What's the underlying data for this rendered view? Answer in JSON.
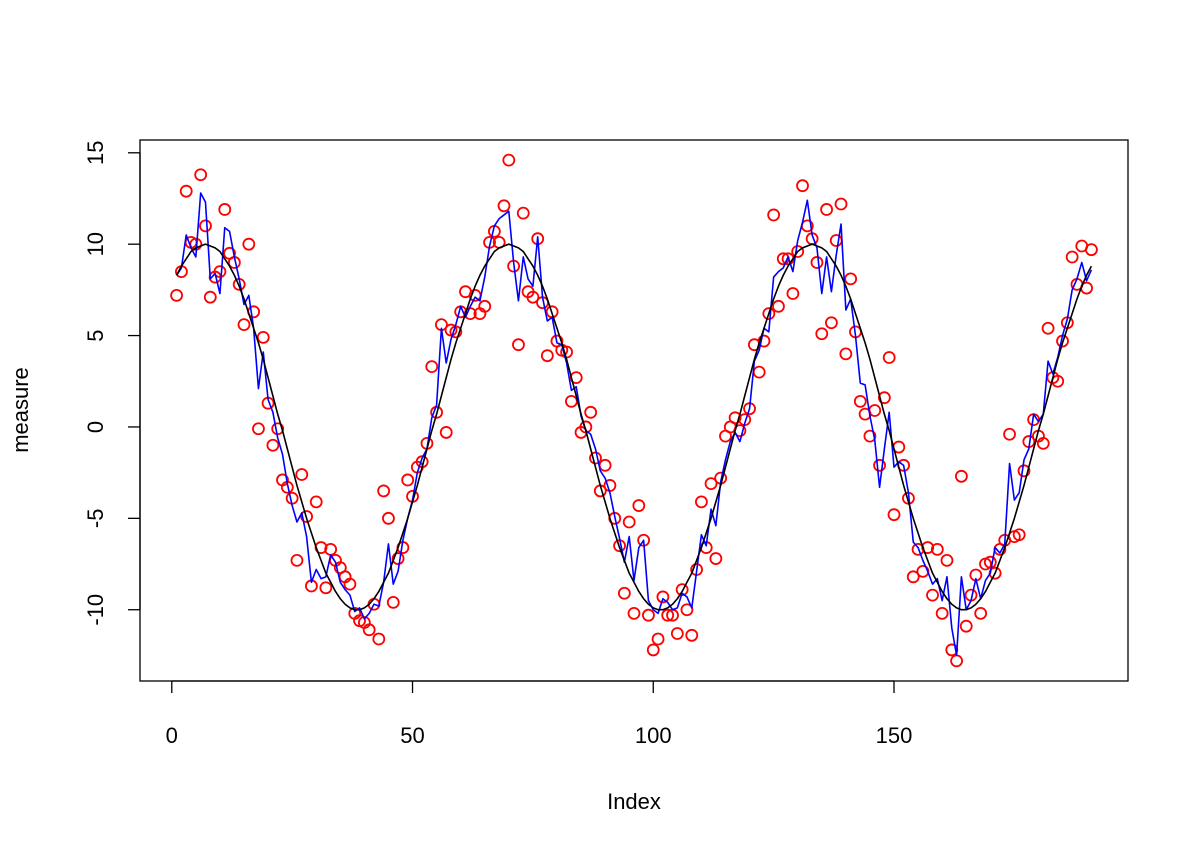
{
  "chart_data": {
    "type": "scatter",
    "xlabel": "Index",
    "ylabel": "measure",
    "xlim": [
      -6.6,
      198.6
    ],
    "ylim": [
      -13.9,
      15.7
    ],
    "xticks": [
      0,
      50,
      100,
      150
    ],
    "yticks": [
      -10,
      -5,
      0,
      5,
      10,
      15
    ],
    "x": [
      1,
      2,
      3,
      4,
      5,
      6,
      7,
      8,
      9,
      10,
      11,
      12,
      13,
      14,
      15,
      16,
      17,
      18,
      19,
      20,
      21,
      22,
      23,
      24,
      25,
      26,
      27,
      28,
      29,
      30,
      31,
      32,
      33,
      34,
      35,
      36,
      37,
      38,
      39,
      40,
      41,
      42,
      43,
      44,
      45,
      46,
      47,
      48,
      49,
      50,
      51,
      52,
      53,
      54,
      55,
      56,
      57,
      58,
      59,
      60,
      61,
      62,
      63,
      64,
      65,
      66,
      67,
      68,
      69,
      70,
      71,
      72,
      73,
      74,
      75,
      76,
      77,
      78,
      79,
      80,
      81,
      82,
      83,
      84,
      85,
      86,
      87,
      88,
      89,
      90,
      91,
      92,
      93,
      94,
      95,
      96,
      97,
      98,
      99,
      100,
      101,
      102,
      103,
      104,
      105,
      106,
      107,
      108,
      109,
      110,
      111,
      112,
      113,
      114,
      115,
      116,
      117,
      118,
      119,
      120,
      121,
      122,
      123,
      124,
      125,
      126,
      127,
      128,
      129,
      130,
      131,
      132,
      133,
      134,
      135,
      136,
      137,
      138,
      139,
      140,
      141,
      142,
      143,
      144,
      145,
      146,
      147,
      148,
      149,
      150,
      151,
      152,
      153,
      154,
      155,
      156,
      157,
      158,
      159,
      160,
      161,
      162,
      163,
      164,
      165,
      166,
      167,
      168,
      169,
      170,
      171,
      172,
      173,
      174,
      175,
      176,
      177,
      178,
      179,
      180,
      181,
      182,
      183,
      184,
      185,
      186,
      187,
      188,
      189,
      190,
      191
    ],
    "series": [
      {
        "type": "points",
        "color": "#ff0000",
        "values": [
          7.2,
          8.5,
          12.9,
          10.1,
          10.0,
          13.8,
          11.0,
          7.1,
          8.2,
          8.5,
          11.9,
          9.5,
          9.0,
          7.8,
          5.6,
          10.0,
          6.3,
          -0.1,
          4.9,
          1.3,
          -1.0,
          -0.1,
          -2.9,
          -3.3,
          -3.9,
          -7.3,
          -2.6,
          -4.9,
          -8.7,
          -4.1,
          -6.6,
          -8.8,
          -6.7,
          -7.3,
          -7.7,
          -8.2,
          -8.6,
          -10.2,
          -10.6,
          -10.7,
          -11.1,
          -9.7,
          -11.6,
          -3.5,
          -5.0,
          -9.6,
          -7.2,
          -6.6,
          -2.9,
          -3.8,
          -2.2,
          -1.9,
          -0.9,
          3.3,
          0.8,
          5.6,
          -0.3,
          5.3,
          5.2,
          6.3,
          7.4,
          6.2,
          7.2,
          6.2,
          6.6,
          10.1,
          10.7,
          10.1,
          12.1,
          14.6,
          8.8,
          4.5,
          11.7,
          7.4,
          7.1,
          10.3,
          6.8,
          3.9,
          6.3,
          4.7,
          4.2,
          4.1,
          1.4,
          2.7,
          -0.3,
          0.0,
          0.8,
          -1.7,
          -3.5,
          -2.1,
          -3.2,
          -5.0,
          -6.5,
          -9.1,
          -5.2,
          -10.2,
          -4.3,
          -6.2,
          -10.3,
          -12.2,
          -11.6,
          -9.3,
          -10.3,
          -10.3,
          -11.3,
          -8.9,
          -10.0,
          -11.4,
          -7.8,
          -4.1,
          -6.6,
          -3.1,
          -7.2,
          -2.8,
          -0.5,
          0.0,
          0.5,
          -0.2,
          0.4,
          1.0,
          4.5,
          3.0,
          4.7,
          6.2,
          11.6,
          6.6,
          9.2,
          9.2,
          7.3,
          9.6,
          13.2,
          11.0,
          10.3,
          9.0,
          5.1,
          11.9,
          5.7,
          10.2,
          12.2,
          4.0,
          8.1,
          5.2,
          1.4,
          0.7,
          -0.5,
          0.9,
          -2.1,
          1.6,
          3.8,
          -4.8,
          -1.1,
          -2.1,
          -3.9,
          -8.2,
          -6.7,
          -7.9,
          -6.6,
          -9.2,
          -6.7,
          -10.2,
          -7.3,
          -12.2,
          -12.8,
          -2.7,
          -10.9,
          -9.2,
          -8.1,
          -10.2,
          -7.5,
          -7.4,
          -8.0,
          -6.7,
          -6.2,
          -0.4,
          -6.0,
          -5.9,
          -2.4,
          -0.8,
          0.4,
          -0.5,
          -0.9,
          5.4,
          2.7,
          2.5,
          4.7,
          5.7,
          9.3,
          7.8,
          9.9,
          7.6,
          9.7
        ]
      },
      {
        "type": "line",
        "color": "#0000ff",
        "values": [
          8.3,
          8.7,
          10.5,
          9.8,
          9.3,
          12.8,
          12.3,
          8.1,
          8.4,
          7.3,
          10.9,
          10.7,
          9.3,
          8.1,
          6.7,
          7.2,
          5.4,
          2.1,
          4.1,
          1.5,
          0.8,
          -0.6,
          -1.5,
          -3.1,
          -4.3,
          -5.2,
          -4.7,
          -6.0,
          -8.5,
          -7.8,
          -8.3,
          -8.2,
          -7.0,
          -7.4,
          -8.5,
          -8.9,
          -9.2,
          -10.1,
          -9.9,
          -10.5,
          -10.2,
          -9.7,
          -9.8,
          -8.5,
          -6.4,
          -8.6,
          -7.9,
          -6.2,
          -5.0,
          -4.0,
          -2.5,
          -1.7,
          -1.2,
          0.5,
          1.2,
          5.4,
          3.5,
          4.8,
          5.6,
          6.6,
          6.0,
          6.6,
          7.1,
          6.9,
          8.2,
          9.9,
          11.0,
          11.4,
          11.6,
          11.8,
          9.0,
          6.9,
          9.3,
          8.1,
          7.7,
          10.4,
          7.1,
          5.8,
          6.0,
          4.6,
          4.5,
          3.5,
          2.0,
          2.2,
          0.6,
          -0.2,
          -0.4,
          -1.2,
          -2.4,
          -2.8,
          -3.6,
          -4.9,
          -6.1,
          -7.4,
          -6.0,
          -8.4,
          -6.6,
          -6.2,
          -9.5,
          -10.0,
          -10.2,
          -9.4,
          -9.6,
          -10.0,
          -9.9,
          -9.1,
          -9.3,
          -9.9,
          -7.9,
          -5.9,
          -6.5,
          -4.5,
          -5.4,
          -3.0,
          -1.8,
          -0.8,
          -0.3,
          -0.8,
          0.2,
          1.0,
          3.6,
          4.2,
          5.4,
          5.2,
          8.2,
          8.5,
          8.7,
          9.3,
          8.5,
          10.2,
          11.2,
          12.4,
          10.5,
          9.8,
          7.3,
          9.3,
          7.4,
          9.4,
          11.1,
          6.4,
          7.0,
          5.0,
          2.4,
          2.3,
          0.6,
          -0.7,
          -3.3,
          -1.2,
          0.8,
          -2.2,
          -1.9,
          -2.1,
          -3.6,
          -6.3,
          -6.6,
          -7.3,
          -7.9,
          -8.6,
          -8.3,
          -9.5,
          -8.2,
          -11.0,
          -12.5,
          -8.2,
          -10.0,
          -9.5,
          -8.3,
          -9.4,
          -8.4,
          -8.0,
          -6.6,
          -6.9,
          -6.4,
          -2.0,
          -4.0,
          -3.6,
          -1.8,
          -1.2,
          0.7,
          0.3,
          0.7,
          3.6,
          2.9,
          3.8,
          5.0,
          5.9,
          7.5,
          8.1,
          9.0,
          8.0,
          8.6
        ]
      },
      {
        "type": "line",
        "color": "#000000",
        "values": [
          8.3,
          8.8,
          9.2,
          9.6,
          9.8,
          9.9,
          10.0,
          9.9,
          9.8,
          9.6,
          9.2,
          8.8,
          8.3,
          7.7,
          7.0,
          6.2,
          5.4,
          4.6,
          3.7,
          2.7,
          1.7,
          0.7,
          -0.2,
          -1.2,
          -2.2,
          -3.2,
          -4.1,
          -5.0,
          -5.8,
          -6.6,
          -7.3,
          -8.0,
          -8.5,
          -9.0,
          -9.4,
          -9.7,
          -9.9,
          -10.0,
          -10.0,
          -9.9,
          -9.7,
          -9.4,
          -9.0,
          -8.5,
          -8.0,
          -7.3,
          -6.6,
          -5.8,
          -5.0,
          -4.1,
          -3.2,
          -2.2,
          -1.2,
          -0.2,
          0.7,
          1.7,
          2.7,
          3.7,
          4.6,
          5.4,
          6.2,
          7.0,
          7.7,
          8.3,
          8.8,
          9.2,
          9.6,
          9.8,
          9.9,
          10.0,
          9.9,
          9.8,
          9.6,
          9.2,
          8.8,
          8.3,
          7.7,
          7.0,
          6.2,
          5.4,
          4.6,
          3.7,
          2.7,
          1.7,
          0.7,
          -0.2,
          -1.2,
          -2.2,
          -3.2,
          -4.1,
          -5.0,
          -5.8,
          -6.6,
          -7.3,
          -8.0,
          -8.5,
          -9.0,
          -9.4,
          -9.7,
          -9.9,
          -10.0,
          -10.0,
          -9.9,
          -9.7,
          -9.4,
          -9.0,
          -8.5,
          -8.0,
          -7.3,
          -6.6,
          -5.8,
          -5.0,
          -4.1,
          -3.2,
          -2.2,
          -1.2,
          -0.2,
          0.7,
          1.7,
          2.7,
          3.7,
          4.6,
          5.4,
          6.2,
          7.0,
          7.7,
          8.3,
          8.8,
          9.2,
          9.6,
          9.8,
          9.9,
          10.0,
          9.9,
          9.8,
          9.6,
          9.2,
          8.8,
          8.3,
          7.7,
          7.0,
          6.2,
          5.4,
          4.6,
          3.7,
          2.7,
          1.7,
          0.7,
          -0.2,
          -1.2,
          -2.2,
          -3.2,
          -4.1,
          -5.0,
          -5.8,
          -6.6,
          -7.3,
          -8.0,
          -8.5,
          -9.0,
          -9.4,
          -9.7,
          -9.9,
          -10.0,
          -10.0,
          -9.9,
          -9.7,
          -9.4,
          -9.0,
          -8.5,
          -8.0,
          -7.3,
          -6.6,
          -5.8,
          -5.0,
          -4.1,
          -3.2,
          -2.2,
          -1.2,
          -0.2,
          0.7,
          1.7,
          2.7,
          3.7,
          4.6,
          5.4,
          6.2,
          7.0,
          7.7,
          8.3,
          8.8
        ]
      }
    ]
  }
}
